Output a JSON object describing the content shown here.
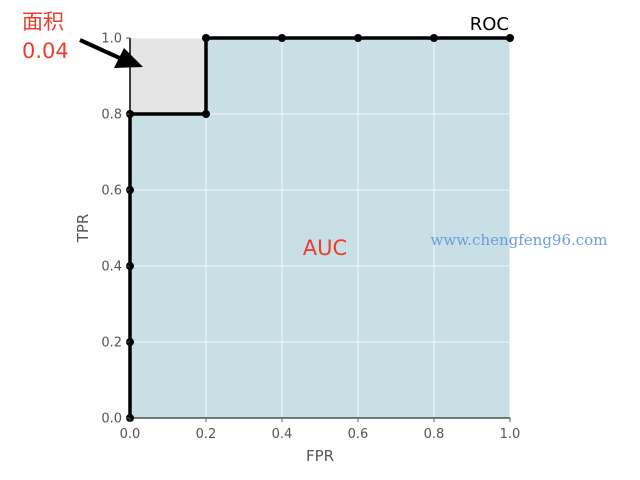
{
  "chart_data": {
    "type": "line",
    "title": "ROC",
    "xlabel": "FPR",
    "ylabel": "TPR",
    "xlim": [
      0,
      1
    ],
    "ylim": [
      0,
      1
    ],
    "xticks": [
      "0.0",
      "0.2",
      "0.4",
      "0.6",
      "0.8",
      "1.0"
    ],
    "yticks": [
      "0.0",
      "0.2",
      "0.4",
      "0.6",
      "0.8",
      "1.0"
    ],
    "grid": true,
    "series": [
      {
        "x": [
          0.0,
          0.0,
          0.0,
          0.0,
          0.0,
          0.2,
          0.2,
          0.4,
          0.6,
          0.8,
          1.0
        ],
        "y": [
          0.0,
          0.2,
          0.4,
          0.6,
          0.8,
          0.8,
          1.0,
          1.0,
          1.0,
          1.0,
          1.0
        ],
        "color": "#000000"
      }
    ],
    "area_under_curve": {
      "label": "AUC",
      "color": "#c8dfe6"
    },
    "area_above_curve": {
      "color": "#e5e5e5"
    },
    "annotation": {
      "line1": "面积",
      "line2": "0.04",
      "color": "#f03a2a"
    },
    "watermark": {
      "text": "www.chengfeng96.com",
      "color": "#6b9be0"
    }
  }
}
